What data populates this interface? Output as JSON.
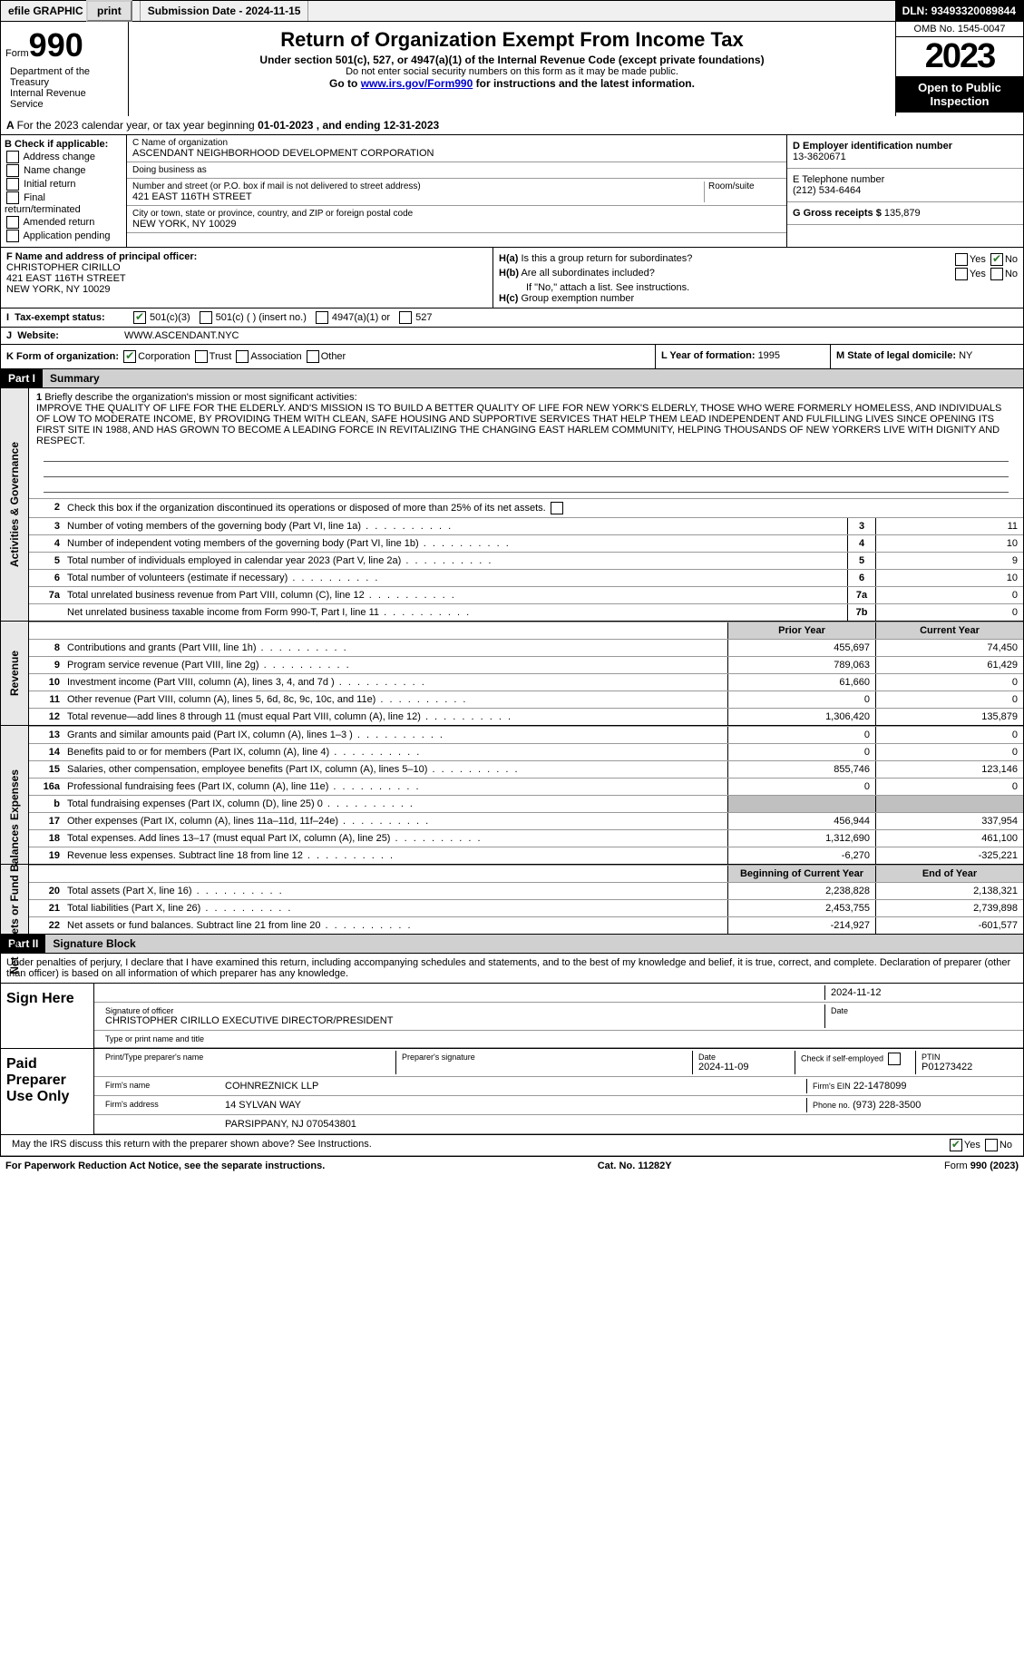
{
  "topbar": {
    "efile": "efile GRAPHIC",
    "print": "print",
    "subdate_lbl": "Submission Date - ",
    "subdate": "2024-11-15",
    "dln_lbl": "DLN: ",
    "dln": "93493320089844"
  },
  "header": {
    "form_word": "Form",
    "form_num": "990",
    "title": "Return of Organization Exempt From Income Tax",
    "subtitle": "Under section 501(c), 527, or 4947(a)(1) of the Internal Revenue Code (except private foundations)",
    "ssn_note": "Do not enter social security numbers on this form as it may be made public.",
    "goto_pre": "Go to ",
    "goto_link": "www.irs.gov/Form990",
    "goto_post": " for instructions and the latest information.",
    "dept": "Department of the Treasury\nInternal Revenue Service",
    "omb": "OMB No. 1545-0047",
    "year": "2023",
    "open_pub": "Open to Public Inspection"
  },
  "A": {
    "text": "For the 2023 calendar year, or tax year beginning ",
    "begin": "01-01-2023",
    "mid": " , and ending ",
    "end": "12-31-2023"
  },
  "B": {
    "title": "B Check if applicable:",
    "opts": [
      "Address change",
      "Name change",
      "Initial return",
      "Final return/terminated",
      "Amended return",
      "Application pending"
    ]
  },
  "C": {
    "name_lbl": "C Name of organization",
    "name": "ASCENDANT NEIGHBORHOOD DEVELOPMENT CORPORATION",
    "dba_lbl": "Doing business as",
    "dba": "",
    "street_lbl": "Number and street (or P.O. box if mail is not delivered to street address)",
    "street": "421 EAST 116TH STREET",
    "room_lbl": "Room/suite",
    "city_lbl": "City or town, state or province, country, and ZIP or foreign postal code",
    "city": "NEW YORK, NY  10029"
  },
  "D": {
    "lbl": "D Employer identification number",
    "val": "13-3620671"
  },
  "E": {
    "lbl": "E Telephone number",
    "val": "(212) 534-6464"
  },
  "G": {
    "lbl": "G Gross receipts $ ",
    "val": "135,879"
  },
  "F": {
    "lbl": "F Name and address of principal officer:",
    "name": "CHRISTOPHER CIRILLO",
    "addr1": "421 EAST 116TH STREET",
    "addr2": "NEW YORK, NY  10029"
  },
  "H": {
    "a": "Is this a group return for subordinates?",
    "b": "Are all subordinates included?",
    "b_note": "If \"No,\" attach a list. See instructions.",
    "c_lbl": "Group exemption number",
    "yes": "Yes",
    "no": "No"
  },
  "I": {
    "lbl": "Tax-exempt status:",
    "o1": "501(c)(3)",
    "o2": "501(c) (  ) (insert no.)",
    "o3": "4947(a)(1) or",
    "o4": "527"
  },
  "J": {
    "lbl": "Website:",
    "val": "WWW.ASCENDANT.NYC"
  },
  "K": {
    "lbl": "K Form of organization:",
    "o1": "Corporation",
    "o2": "Trust",
    "o3": "Association",
    "o4": "Other",
    "L_lbl": "L Year of formation: ",
    "L_val": "1995",
    "M_lbl": "M State of legal domicile: ",
    "M_val": "NY"
  },
  "partI": {
    "hdr": "Part I",
    "title": "Summary",
    "l1_lbl": "Briefly describe the organization's mission or most significant activities:",
    "mission": "IMPROVE THE QUALITY OF LIFE FOR THE ELDERLY. AND'S MISSION IS TO BUILD A BETTER QUALITY OF LIFE FOR NEW YORK'S ELDERLY, THOSE WHO WERE FORMERLY HOMELESS, AND INDIVIDUALS OF LOW TO MODERATE INCOME, BY PROVIDING THEM WITH CLEAN, SAFE HOUSING AND SUPPORTIVE SERVICES THAT HELP THEM LEAD INDEPENDENT AND FULFILLING LIVES SINCE OPENING ITS FIRST SITE IN 1988, AND HAS GROWN TO BECOME A LEADING FORCE IN REVITALIZING THE CHANGING EAST HARLEM COMMUNITY, HELPING THOUSANDS OF NEW YORKERS LIVE WITH DIGNITY AND RESPECT.",
    "l2": "Check this box      if the organization discontinued its operations or disposed of more than 25% of its net assets.",
    "side1": "Activities & Governance",
    "side2": "Revenue",
    "side3": "Expenses",
    "side4": "Net Assets or Fund Balances",
    "rows_gov": [
      {
        "n": "3",
        "d": "Number of voting members of the governing body (Part VI, line 1a)",
        "b": "3",
        "v": "11"
      },
      {
        "n": "4",
        "d": "Number of independent voting members of the governing body (Part VI, line 1b)",
        "b": "4",
        "v": "10"
      },
      {
        "n": "5",
        "d": "Total number of individuals employed in calendar year 2023 (Part V, line 2a)",
        "b": "5",
        "v": "9"
      },
      {
        "n": "6",
        "d": "Total number of volunteers (estimate if necessary)",
        "b": "6",
        "v": "10"
      },
      {
        "n": "7a",
        "d": "Total unrelated business revenue from Part VIII, column (C), line 12",
        "b": "7a",
        "v": "0"
      },
      {
        "n": "",
        "d": "Net unrelated business taxable income from Form 990-T, Part I, line 11",
        "b": "7b",
        "v": "0"
      }
    ],
    "hdr_prior": "Prior Year",
    "hdr_curr": "Current Year",
    "rows_rev": [
      {
        "n": "8",
        "d": "Contributions and grants (Part VIII, line 1h)",
        "p": "455,697",
        "c": "74,450"
      },
      {
        "n": "9",
        "d": "Program service revenue (Part VIII, line 2g)",
        "p": "789,063",
        "c": "61,429"
      },
      {
        "n": "10",
        "d": "Investment income (Part VIII, column (A), lines 3, 4, and 7d )",
        "p": "61,660",
        "c": "0"
      },
      {
        "n": "11",
        "d": "Other revenue (Part VIII, column (A), lines 5, 6d, 8c, 9c, 10c, and 11e)",
        "p": "0",
        "c": "0"
      },
      {
        "n": "12",
        "d": "Total revenue—add lines 8 through 11 (must equal Part VIII, column (A), line 12)",
        "p": "1,306,420",
        "c": "135,879"
      }
    ],
    "rows_exp": [
      {
        "n": "13",
        "d": "Grants and similar amounts paid (Part IX, column (A), lines 1–3 )",
        "p": "0",
        "c": "0"
      },
      {
        "n": "14",
        "d": "Benefits paid to or for members (Part IX, column (A), line 4)",
        "p": "0",
        "c": "0"
      },
      {
        "n": "15",
        "d": "Salaries, other compensation, employee benefits (Part IX, column (A), lines 5–10)",
        "p": "855,746",
        "c": "123,146"
      },
      {
        "n": "16a",
        "d": "Professional fundraising fees (Part IX, column (A), line 11e)",
        "p": "0",
        "c": "0"
      },
      {
        "n": "b",
        "d": "Total fundraising expenses (Part IX, column (D), line 25) 0",
        "p": "",
        "c": "",
        "shade": true
      },
      {
        "n": "17",
        "d": "Other expenses (Part IX, column (A), lines 11a–11d, 11f–24e)",
        "p": "456,944",
        "c": "337,954"
      },
      {
        "n": "18",
        "d": "Total expenses. Add lines 13–17 (must equal Part IX, column (A), line 25)",
        "p": "1,312,690",
        "c": "461,100"
      },
      {
        "n": "19",
        "d": "Revenue less expenses. Subtract line 18 from line 12",
        "p": "-6,270",
        "c": "-325,221"
      }
    ],
    "hdr_beg": "Beginning of Current Year",
    "hdr_end": "End of Year",
    "rows_net": [
      {
        "n": "20",
        "d": "Total assets (Part X, line 16)",
        "p": "2,238,828",
        "c": "2,138,321"
      },
      {
        "n": "21",
        "d": "Total liabilities (Part X, line 26)",
        "p": "2,453,755",
        "c": "2,739,898"
      },
      {
        "n": "22",
        "d": "Net assets or fund balances. Subtract line 21 from line 20",
        "p": "-214,927",
        "c": "-601,577"
      }
    ]
  },
  "partII": {
    "hdr": "Part II",
    "title": "Signature Block",
    "decl": "Under penalties of perjury, I declare that I have examined this return, including accompanying schedules and statements, and to the best of my knowledge and belief, it is true, correct, and complete. Declaration of preparer (other than officer) is based on all information of which preparer has any knowledge.",
    "sign_here": "Sign Here",
    "sig_officer": "Signature of officer",
    "sig_date": "2024-11-12",
    "officer": "CHRISTOPHER CIRILLO  EXECUTIVE DIRECTOR/PRESIDENT",
    "type_name": "Type or print name and title",
    "date_lbl": "Date",
    "paid": "Paid Preparer Use Only",
    "prep_name_lbl": "Print/Type preparer's name",
    "prep_sig_lbl": "Preparer's signature",
    "prep_date_lbl": "Date",
    "prep_date": "2024-11-09",
    "self_emp": "Check        if self-employed",
    "ptin_lbl": "PTIN",
    "ptin": "P01273422",
    "firm_name_lbl": "Firm's name",
    "firm_name": "COHNREZNICK LLP",
    "firm_ein_lbl": "Firm's EIN",
    "firm_ein": "22-1478099",
    "firm_addr_lbl": "Firm's address",
    "firm_addr": "14 SYLVAN WAY",
    "firm_city": "PARSIPPANY, NJ  070543801",
    "phone_lbl": "Phone no.",
    "phone": "(973) 228-3500",
    "discuss": "May the IRS discuss this return with the preparer shown above? See Instructions.",
    "yes": "Yes",
    "no": "No"
  },
  "footer": {
    "paperwork": "For Paperwork Reduction Act Notice, see the separate instructions.",
    "cat": "Cat. No. 11282Y",
    "form": "Form 990 (2023)"
  }
}
